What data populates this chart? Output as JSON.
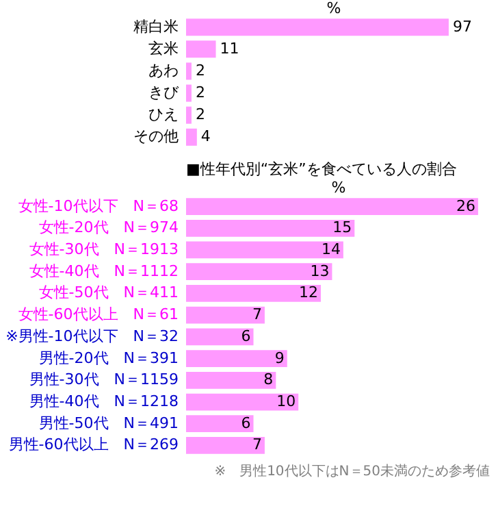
{
  "chart_data": [
    {
      "type": "bar",
      "orientation": "horizontal",
      "xlabel": "%",
      "categories": [
        "精白米",
        "玄米",
        "あわ",
        "きび",
        "ひえ",
        "その他"
      ],
      "values": [
        97,
        11,
        2,
        2,
        2,
        4
      ],
      "color": "#ff99ff",
      "data_labels": true,
      "tick_labels": "y",
      "grid": false
    },
    {
      "type": "bar",
      "orientation": "horizontal",
      "title": "■性年代別“玄米”を食べている人の割合",
      "xlabel": "%",
      "categories": [
        "女性-10代以下　N＝68",
        "女性-20代　N＝974",
        "女性-30代　N＝1913",
        "女性-40代　N＝1112",
        "女性-50代　N＝411",
        "女性-60代以上　N＝61",
        "※男性-10代以下　N＝32",
        "男性-20代　N＝391",
        "男性-30代　N＝1159",
        "男性-40代　N＝1218",
        "男性-50代　N＝491",
        "男性-60代以上　N＝269"
      ],
      "values": [
        26,
        15,
        14,
        13,
        12,
        7,
        6,
        9,
        8,
        10,
        6,
        7
      ],
      "color": "#ff99ff",
      "data_labels": true,
      "tick_labels": "y",
      "grid": false,
      "annotations": [
        "※　男性10代以下はN＝50未満のため参考値"
      ]
    }
  ]
}
